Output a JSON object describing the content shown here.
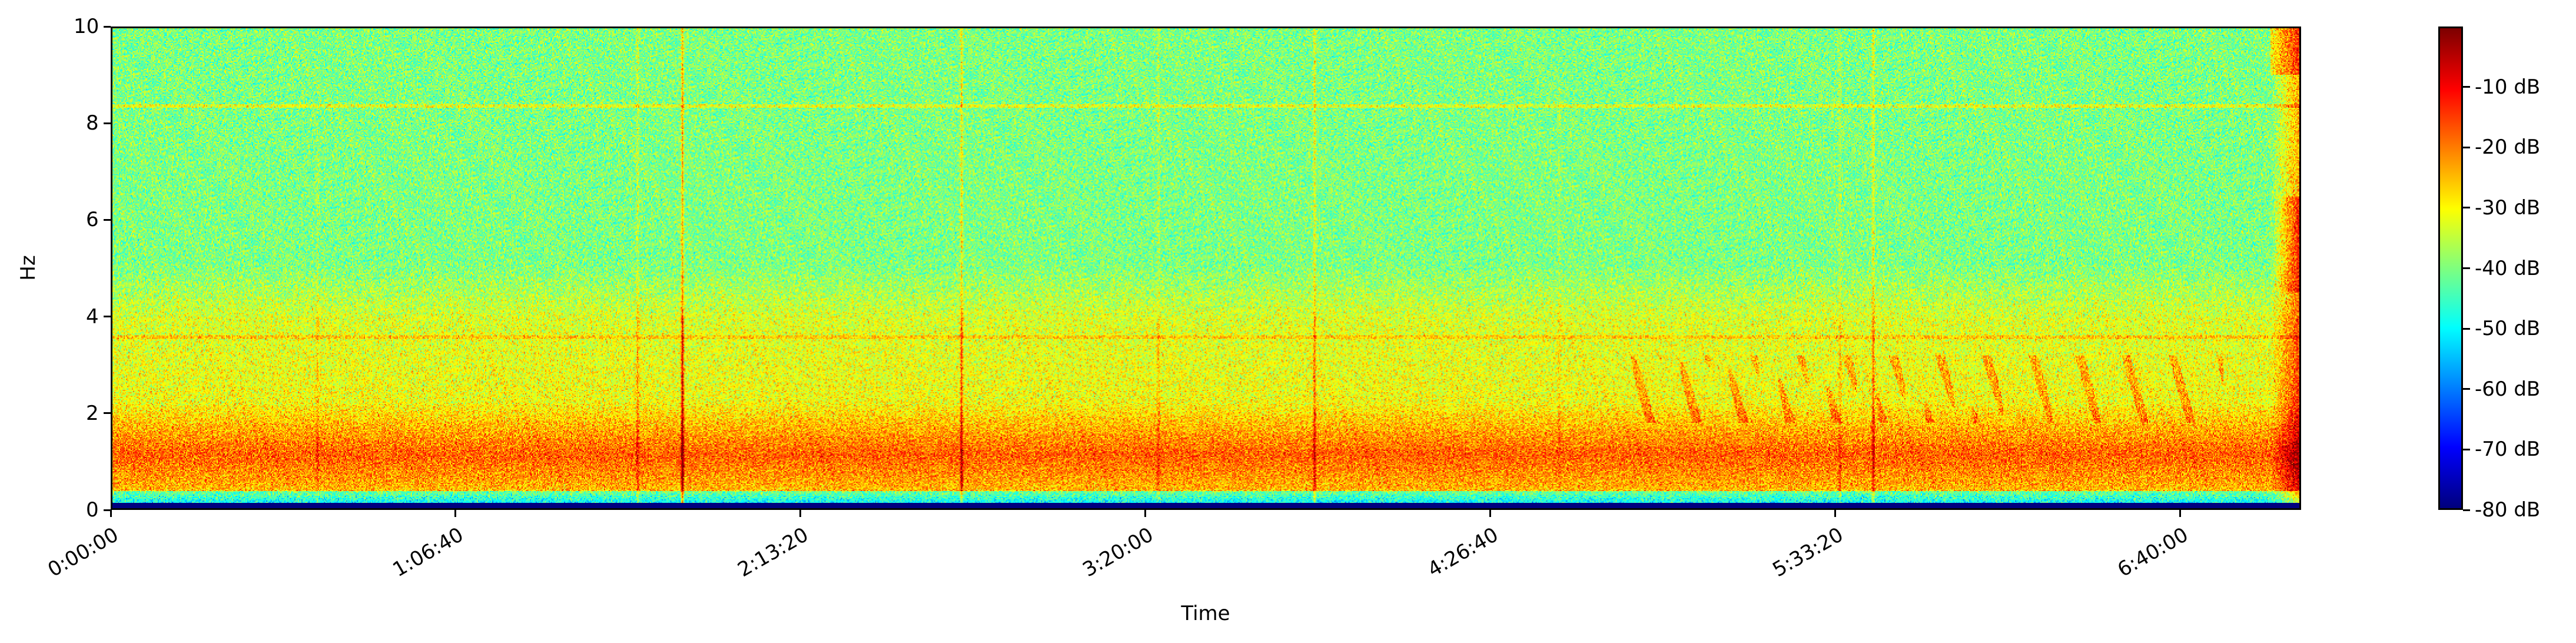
{
  "chart_data": {
    "type": "heatmap",
    "title": "",
    "xlabel": "Time",
    "ylabel": "Hz",
    "xlim": [
      0,
      25400
    ],
    "ylim": [
      0,
      10
    ],
    "x_ticks": [
      {
        "value": 0,
        "label": "0:00:00"
      },
      {
        "value": 4000,
        "label": "1:06:40"
      },
      {
        "value": 8000,
        "label": "2:13:20"
      },
      {
        "value": 12000,
        "label": "3:20:00"
      },
      {
        "value": 16000,
        "label": "4:26:40"
      },
      {
        "value": 20000,
        "label": "5:33:20"
      },
      {
        "value": 24000,
        "label": "6:40:00"
      }
    ],
    "y_ticks": [
      {
        "value": 0,
        "label": "0"
      },
      {
        "value": 2,
        "label": "2"
      },
      {
        "value": 4,
        "label": "4"
      },
      {
        "value": 6,
        "label": "6"
      },
      {
        "value": 8,
        "label": "8"
      },
      {
        "value": 10,
        "label": "10"
      }
    ],
    "colorbar": {
      "colormap": "jet",
      "range": [
        -80,
        0
      ],
      "ticks": [
        {
          "value": -10,
          "label": "-10 dB"
        },
        {
          "value": -20,
          "label": "-20 dB"
        },
        {
          "value": -30,
          "label": "-30 dB"
        },
        {
          "value": -40,
          "label": "-40 dB"
        },
        {
          "value": -50,
          "label": "-50 dB"
        },
        {
          "value": -60,
          "label": "-60 dB"
        },
        {
          "value": -70,
          "label": "-70 dB"
        },
        {
          "value": -80,
          "label": "-80 dB"
        }
      ]
    },
    "grid": false
  }
}
